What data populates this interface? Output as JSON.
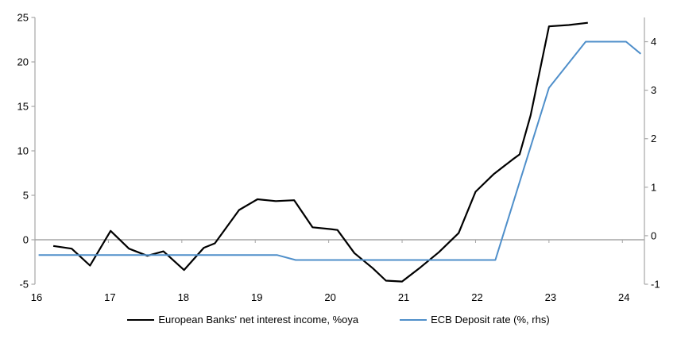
{
  "chart_data": {
    "type": "line",
    "title": "",
    "grid": false,
    "legend_position": "bottom",
    "x_axis": {
      "ticks": [
        16,
        17,
        18,
        19,
        20,
        21,
        22,
        23,
        24
      ],
      "range": [
        16,
        24.3
      ]
    },
    "left_axis": {
      "ticks": [
        25,
        20,
        15,
        10,
        5,
        0,
        -5
      ],
      "range": [
        -5,
        25
      ]
    },
    "right_axis": {
      "ticks": [
        4,
        3,
        2,
        1,
        0,
        -1
      ],
      "range": [
        -1,
        4.5
      ]
    },
    "series": [
      {
        "name": "European Banks' net interest income, %oya",
        "axis": "left",
        "color": "#000000",
        "stroke_width": 2.2,
        "x": [
          16.25,
          16.5,
          16.75,
          17.03,
          17.28,
          17.53,
          17.75,
          18.03,
          18.3,
          18.45,
          18.78,
          19.03,
          19.28,
          19.53,
          19.78,
          20.03,
          20.12,
          20.35,
          20.6,
          20.78,
          21.0,
          21.25,
          21.5,
          21.77,
          22.0,
          22.25,
          22.5,
          22.6,
          22.75,
          23.0,
          23.27,
          23.53
        ],
        "y": [
          -0.7,
          -1.0,
          -2.9,
          1.0,
          -1.0,
          -1.8,
          -1.3,
          -3.4,
          -0.9,
          -0.4,
          3.35,
          4.55,
          4.35,
          4.45,
          1.4,
          1.2,
          1.1,
          -1.5,
          -3.2,
          -4.6,
          -4.7,
          -3.1,
          -1.4,
          0.75,
          5.4,
          7.4,
          9.0,
          9.6,
          14.0,
          24.0,
          24.15,
          24.4
        ]
      },
      {
        "name": "ECB Deposit rate (%, rhs)",
        "axis": "right",
        "color": "#4f8fca",
        "stroke_width": 2,
        "x": [
          16.05,
          19.3,
          19.55,
          22.27,
          23.0,
          23.5,
          24.05,
          24.25
        ],
        "y": [
          -0.4,
          -0.4,
          -0.5,
          -0.5,
          3.05,
          4.0,
          4.0,
          3.75
        ]
      }
    ]
  },
  "colors": {
    "axis": "#a6a6a6",
    "zero_line": "#a6a6a6",
    "text": "#000000",
    "background": "#ffffff"
  }
}
